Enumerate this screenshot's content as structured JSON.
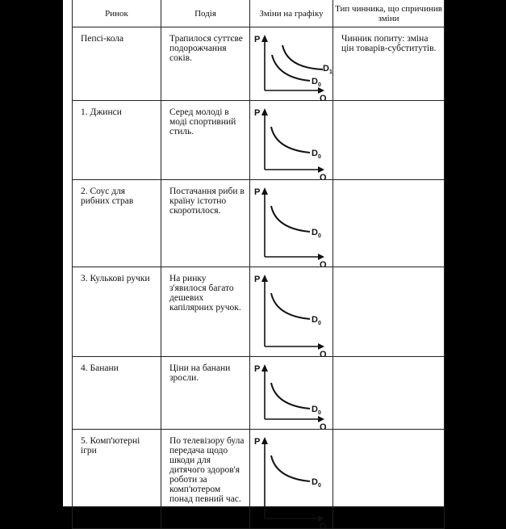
{
  "headers": [
    "Ринок",
    "Подія",
    "Зміни на графіку",
    "Тип чинника, що спричинив зміни"
  ],
  "graph_labels": {
    "p": "P",
    "q": "Q",
    "d0": "D",
    "d0_sub": "0",
    "d1": "D",
    "d1_sub": "1"
  },
  "rows": [
    {
      "market": "Пепсі-кола",
      "event": "Трапилося суттєве подорожчання соків.",
      "factor": "Чинник попиту: зміна цін товарів-субститутів.",
      "curves": [
        "D0",
        "D1"
      ]
    },
    {
      "market": "1. Джинси",
      "event": "Серед молоді в моді спортивний стиль.",
      "factor": "",
      "curves": [
        "D0"
      ]
    },
    {
      "market": "2. Соус для рибних страв",
      "event": "Постачання риби в країну істотно скоротилося.",
      "factor": "",
      "curves": [
        "D0"
      ]
    },
    {
      "market": "3. Кулькові ручки",
      "event": "На ринку з'явилося багато дешевих капілярних ручок.",
      "factor": "",
      "curves": [
        "D0"
      ]
    },
    {
      "market": "4. Банани",
      "event": "Ціни на банани зросли.",
      "factor": "",
      "curves": [
        "D0"
      ]
    },
    {
      "market": "5. Комп'ютерні ігри",
      "event": "По телевізору була передача щодо шкоди для дитячого здоров'я роботи за комп'ютером понад певний час.",
      "factor": "",
      "curves": [
        "D0"
      ]
    }
  ]
}
